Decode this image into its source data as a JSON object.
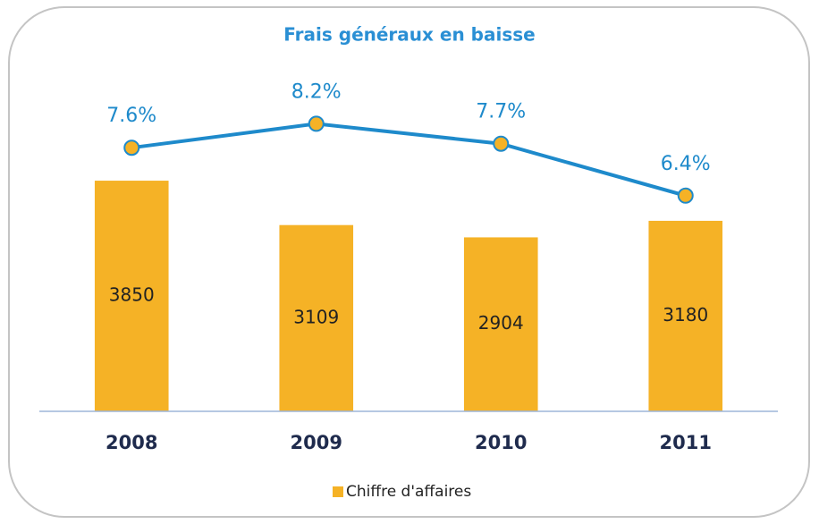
{
  "chart_data": {
    "type": "bar_line",
    "title": "Frais généraux en baisse",
    "categories": [
      "2008",
      "2009",
      "2010",
      "2011"
    ],
    "series": [
      {
        "name": "Chiffre d'affaires",
        "type": "bar",
        "color": "#f5b226",
        "values": [
          3850,
          3109,
          2904,
          3180
        ]
      },
      {
        "type": "line",
        "axis": "y2",
        "color": "#1e8acb",
        "marker_color": "#f5b226",
        "values": [
          7.6,
          8.2,
          7.7,
          6.4
        ],
        "value_labels": [
          "7.6%",
          "8.2%",
          "7.7%",
          "6.4%"
        ]
      }
    ],
    "ylim": [
      0,
      6000
    ],
    "y2lim": [
      1,
      10
    ],
    "legend": "bottom"
  }
}
